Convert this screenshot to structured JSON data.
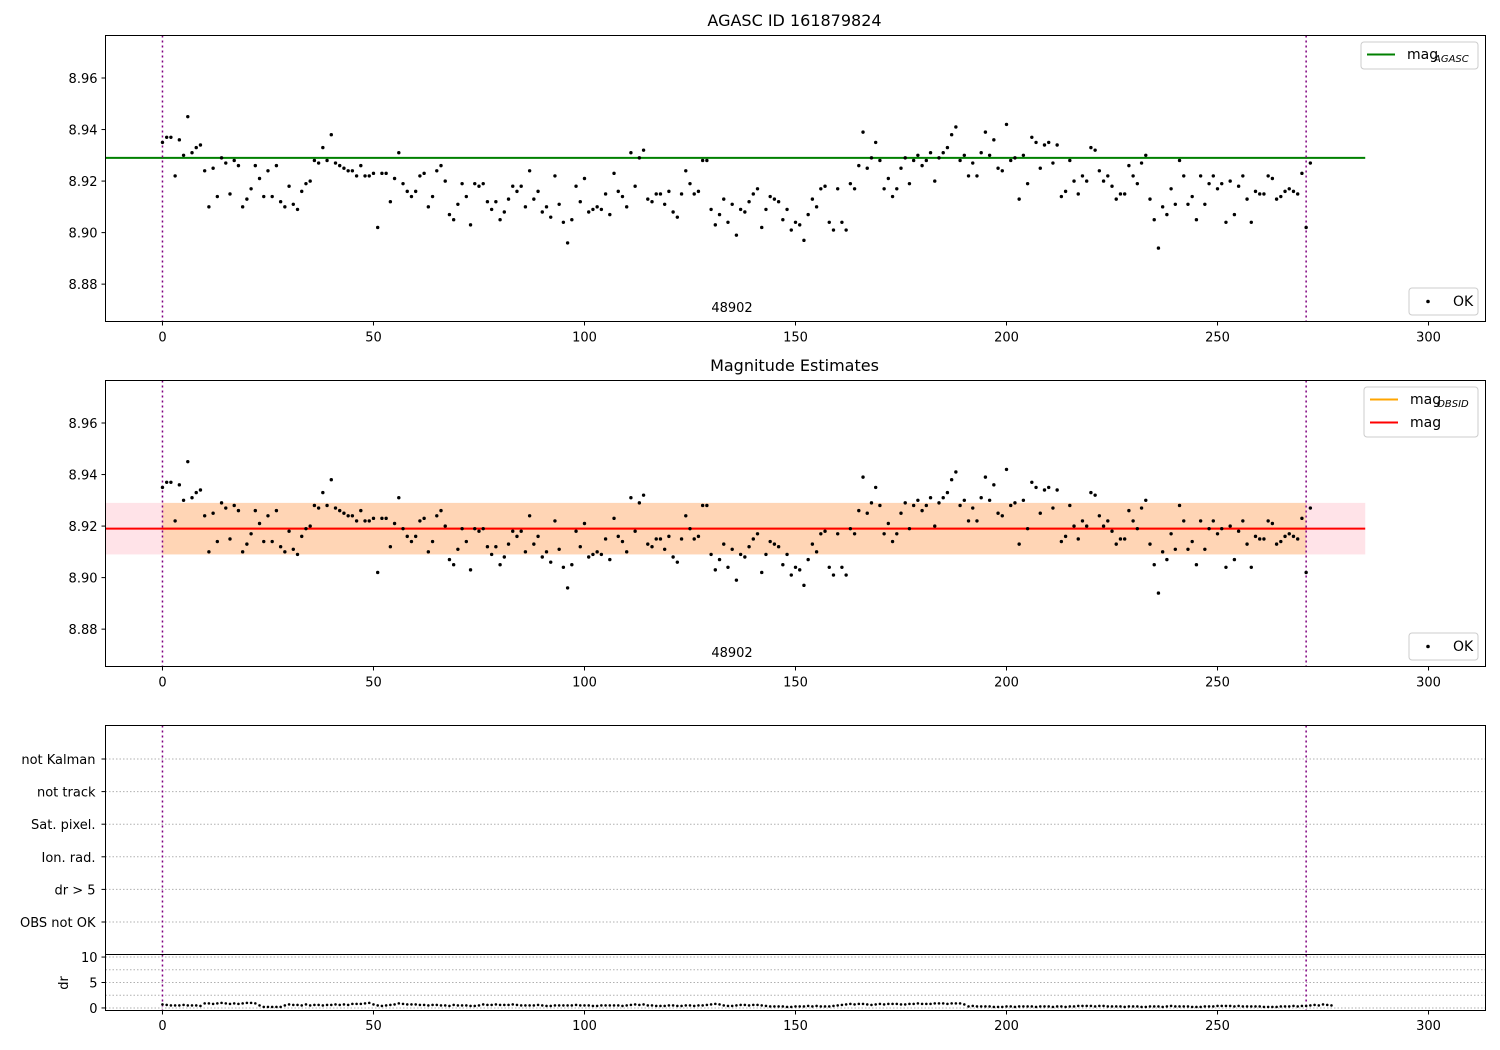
{
  "chart_data": [
    {
      "type": "scatter",
      "title": "AGASC ID 161879824",
      "xlim": [
        -13.5,
        313.5
      ],
      "ylim": [
        8.8655,
        8.9765
      ],
      "yticks": [
        8.88,
        8.9,
        8.92,
        8.94,
        8.96
      ],
      "yticklabels": [
        "8.88",
        "8.90",
        "8.92",
        "8.94",
        "8.96"
      ],
      "xticks": [
        0,
        50,
        100,
        150,
        200,
        250,
        300
      ],
      "xticklabels": [
        "0",
        "50",
        "100",
        "150",
        "200",
        "250",
        "300"
      ],
      "vlines": [
        0,
        271
      ],
      "obsid_label": "48902",
      "obsid_label_x": 135.5,
      "hline": {
        "y": 8.929,
        "x": [
          -13.5,
          285
        ],
        "color": "#008000",
        "label": "mag",
        "label_sub": "AGASC"
      },
      "points_label": "OK",
      "legend_lines_position": "top-right",
      "legend_points_position": "bottom-right"
    },
    {
      "type": "scatter",
      "title": "Magnitude Estimates",
      "xlim": [
        -13.5,
        313.5
      ],
      "ylim": [
        8.8655,
        8.9765
      ],
      "yticks": [
        8.88,
        8.9,
        8.92,
        8.94,
        8.96
      ],
      "yticklabels": [
        "8.88",
        "8.90",
        "8.92",
        "8.94",
        "8.96"
      ],
      "xticks": [
        0,
        50,
        100,
        150,
        200,
        250,
        300
      ],
      "xticklabels": [
        "0",
        "50",
        "100",
        "150",
        "200",
        "250",
        "300"
      ],
      "vlines": [
        0,
        271
      ],
      "obsid_label": "48902",
      "obsid_label_x": 135.5,
      "mag_line": {
        "y": 8.919,
        "x": [
          -13.5,
          285
        ],
        "color": "#ff0000",
        "label": "mag"
      },
      "mag_band": {
        "y": [
          8.909,
          8.929
        ],
        "x": [
          -13.5,
          285
        ],
        "color": "#ffc0cb"
      },
      "obsid_line": {
        "y": 8.919,
        "x": [
          0,
          271
        ],
        "color": "#ffa500",
        "label": "mag",
        "label_sub": "OBSID"
      },
      "obsid_band": {
        "y": [
          8.909,
          8.929
        ],
        "x": [
          0,
          271
        ],
        "color": "#ffa500"
      },
      "points_label": "OK",
      "legend_lines_position": "top-right",
      "legend_points_position": "bottom-right"
    },
    {
      "type": "scatter",
      "title": "",
      "xlim": [
        -13.5,
        313.5
      ],
      "flag_labels": [
        "not Kalman",
        "not track",
        "Sat. pixel.",
        "Ion. rad.",
        "dr > 5",
        "OBS not OK"
      ],
      "vlines": [
        0,
        271
      ]
    },
    {
      "type": "scatter",
      "title": "",
      "ylabel": "dr",
      "xlim": [
        -13.5,
        313.5
      ],
      "ylim": [
        -0.5,
        10.5
      ],
      "yticks": [
        0,
        5,
        10
      ],
      "yticklabels": [
        "0",
        "5",
        "10"
      ],
      "xticks": [
        0,
        50,
        100,
        150,
        200,
        250,
        300
      ],
      "xticklabels": [
        "0",
        "50",
        "100",
        "150",
        "200",
        "250",
        "300"
      ],
      "vlines": [
        0,
        271
      ],
      "dr": [
        0.7,
        0.6,
        0.5,
        0.5,
        0.5,
        0.6,
        0.5,
        0.5,
        0.5,
        0.4,
        0.9,
        0.9,
        0.8,
        0.9,
        1.0,
        0.9,
        0.8,
        0.9,
        0.8,
        0.9,
        1.0,
        1.0,
        0.9,
        0.5,
        0.2,
        0.2,
        0.2,
        0.2,
        0.2,
        0.5,
        0.7,
        0.6,
        0.6,
        0.5,
        0.7,
        0.5,
        0.6,
        0.6,
        0.5,
        0.6,
        0.6,
        0.7,
        0.6,
        0.7,
        0.6,
        0.8,
        0.8,
        0.8,
        0.9,
        1.0,
        0.7,
        0.5,
        0.4,
        0.5,
        0.6,
        0.7,
        0.9,
        0.8,
        0.7,
        0.7,
        0.7,
        0.6,
        0.6,
        0.5,
        0.6,
        0.6,
        0.5,
        0.5,
        0.4,
        0.6,
        0.5,
        0.5,
        0.5,
        0.4,
        0.4,
        0.5,
        0.7,
        0.6,
        0.6,
        0.7,
        0.6,
        0.6,
        0.6,
        0.7,
        0.6,
        0.5,
        0.5,
        0.5,
        0.5,
        0.6,
        0.5,
        0.4,
        0.4,
        0.5,
        0.5,
        0.5,
        0.5,
        0.5,
        0.6,
        0.5,
        0.5,
        0.5,
        0.4,
        0.4,
        0.5,
        0.5,
        0.5,
        0.5,
        0.5,
        0.4,
        0.5,
        0.6,
        0.7,
        0.6,
        0.7,
        0.5,
        0.5,
        0.4,
        0.4,
        0.4,
        0.5,
        0.5,
        0.4,
        0.4,
        0.5,
        0.5,
        0.4,
        0.5,
        0.5,
        0.6,
        0.7,
        0.8,
        0.7,
        0.5,
        0.4,
        0.4,
        0.5,
        0.6,
        0.6,
        0.5,
        0.6,
        0.6,
        0.5,
        0.4,
        0.3,
        0.3,
        0.3,
        0.3,
        0.2,
        0.2,
        0.3,
        0.3,
        0.3,
        0.4,
        0.3,
        0.4,
        0.3,
        0.3,
        0.3,
        0.4,
        0.5,
        0.6,
        0.7,
        0.8,
        0.7,
        0.8,
        0.8,
        0.7,
        0.6,
        0.7,
        0.8,
        0.7,
        0.8,
        0.8,
        0.8,
        0.7,
        0.7,
        0.8,
        0.8,
        0.9,
        0.8,
        0.8,
        0.8,
        0.9,
        0.9,
        0.9,
        0.8,
        0.9,
        0.9,
        0.9,
        0.7,
        0.3,
        0.4,
        0.3,
        0.3,
        0.3,
        0.3,
        0.2,
        0.2,
        0.2,
        0.3,
        0.3,
        0.2,
        0.3,
        0.3,
        0.3,
        0.3,
        0.2,
        0.3,
        0.3,
        0.3,
        0.2,
        0.3,
        0.3,
        0.2,
        0.3,
        0.3,
        0.4,
        0.4,
        0.4,
        0.4,
        0.3,
        0.4,
        0.4,
        0.3,
        0.3,
        0.3,
        0.3,
        0.2,
        0.3,
        0.3,
        0.3,
        0.2,
        0.2,
        0.3,
        0.3,
        0.3,
        0.2,
        0.3,
        0.4,
        0.3,
        0.3,
        0.3,
        0.3,
        0.2,
        0.2,
        0.2,
        0.3,
        0.3,
        0.3,
        0.4,
        0.4,
        0.4,
        0.4,
        0.3,
        0.4,
        0.3,
        0.3,
        0.3,
        0.3,
        0.3,
        0.2,
        0.2,
        0.2,
        0.2,
        0.3,
        0.3,
        0.3,
        0.4,
        0.3,
        0.4,
        0.4,
        0.5,
        0.6,
        0.5,
        0.7,
        0.6,
        0.5
      ]
    }
  ],
  "mag_series": {
    "x_start": 0,
    "x_step": 1,
    "y": [
      8.935,
      8.937,
      8.937,
      8.922,
      8.936,
      8.93,
      8.945,
      8.931,
      8.933,
      8.934,
      8.924,
      8.91,
      8.925,
      8.914,
      8.929,
      8.927,
      8.915,
      8.928,
      8.926,
      8.91,
      8.913,
      8.917,
      8.926,
      8.921,
      8.914,
      8.924,
      8.914,
      8.926,
      8.912,
      8.91,
      8.918,
      8.911,
      8.909,
      8.916,
      8.919,
      8.92,
      8.928,
      8.927,
      8.933,
      8.928,
      8.938,
      8.927,
      8.926,
      8.925,
      8.924,
      8.924,
      8.922,
      8.926,
      8.922,
      8.922,
      8.923,
      8.902,
      8.923,
      8.923,
      8.912,
      8.921,
      8.931,
      8.919,
      8.916,
      8.914,
      8.916,
      8.922,
      8.923,
      8.91,
      8.914,
      8.924,
      8.926,
      8.92,
      8.907,
      8.905,
      8.911,
      8.919,
      8.914,
      8.903,
      8.919,
      8.918,
      8.919,
      8.912,
      8.909,
      8.912,
      8.905,
      8.908,
      8.913,
      8.918,
      8.916,
      8.918,
      8.91,
      8.924,
      8.913,
      8.916,
      8.908,
      8.91,
      8.906,
      8.922,
      8.911,
      8.904,
      8.896,
      8.905,
      8.918,
      8.912,
      8.921,
      8.908,
      8.909,
      8.91,
      8.909,
      8.915,
      8.907,
      8.923,
      8.916,
      8.914,
      8.91,
      8.931,
      8.918,
      8.929,
      8.932,
      8.913,
      8.912,
      8.915,
      8.915,
      8.911,
      8.916,
      8.908,
      8.906,
      8.915,
      8.924,
      8.919,
      8.915,
      8.916,
      8.928,
      8.928,
      8.909,
      8.903,
      8.907,
      8.913,
      8.904,
      8.911,
      8.899,
      8.909,
      8.908,
      8.912,
      8.915,
      8.917,
      8.902,
      8.909,
      8.914,
      8.913,
      8.912,
      8.905,
      8.909,
      8.901,
      8.904,
      8.903,
      8.897,
      8.907,
      8.913,
      8.91,
      8.917,
      8.918,
      8.904,
      8.901,
      8.917,
      8.904,
      8.901,
      8.919,
      8.917,
      8.926,
      8.939,
      8.925,
      8.929,
      8.935,
      8.928,
      8.917,
      8.921,
      8.914,
      8.917,
      8.925,
      8.929,
      8.919,
      8.928,
      8.93,
      8.926,
      8.928,
      8.931,
      8.92,
      8.929,
      8.931,
      8.933,
      8.938,
      8.941,
      8.928,
      8.93,
      8.922,
      8.927,
      8.922,
      8.931,
      8.939,
      8.93,
      8.936,
      8.925,
      8.924,
      8.942,
      8.928,
      8.929,
      8.913,
      8.93,
      8.919,
      8.937,
      8.935,
      8.925,
      8.934,
      8.935,
      8.927,
      8.934,
      8.914,
      8.916,
      8.928,
      8.92,
      8.915,
      8.922,
      8.92,
      8.933,
      8.932,
      8.924,
      8.92,
      8.922,
      8.918,
      8.913,
      8.915,
      8.915,
      8.926,
      8.922,
      8.919,
      8.927,
      8.93,
      8.913,
      8.905,
      8.894,
      8.91,
      8.907,
      8.917,
      8.911,
      8.928,
      8.922,
      8.911,
      8.914,
      8.905,
      8.922,
      8.911,
      8.919,
      8.922,
      8.917,
      8.919,
      8.904,
      8.92,
      8.907,
      8.918,
      8.922,
      8.913,
      8.904,
      8.916,
      8.915,
      8.915,
      8.922,
      8.921,
      8.913,
      8.914,
      8.916,
      8.917,
      8.916,
      8.915,
      8.923,
      8.902,
      8.927
    ]
  }
}
